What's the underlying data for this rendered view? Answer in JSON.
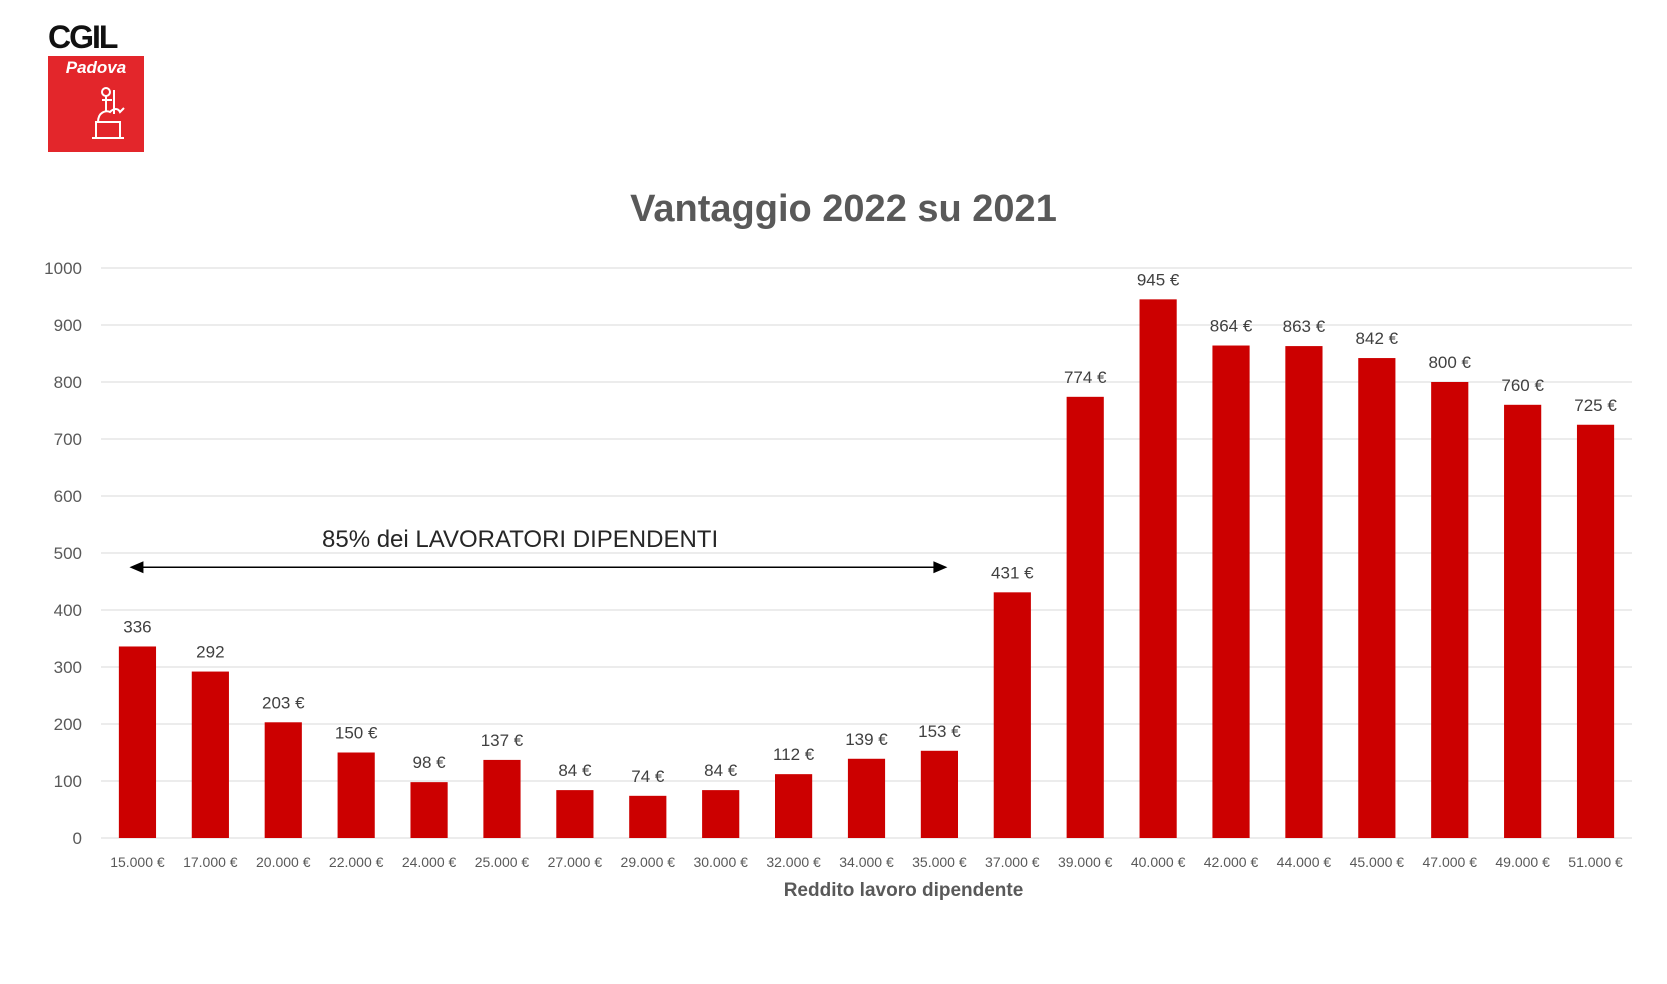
{
  "logo": {
    "org": "CGIL",
    "city": "Padova"
  },
  "annotation": {
    "text": "85% dei LAVORATORI DIPENDENTI"
  },
  "colors": {
    "bar": "#cc0000",
    "grid": "#d9d9d9",
    "axis_text": "#595959",
    "label_text": "#404040"
  },
  "chart_data": {
    "type": "bar",
    "title": "Vantaggio 2022 su 2021",
    "xlabel": "Reddito lavoro dipendente",
    "ylabel": "",
    "ylim": [
      0,
      1000
    ],
    "yticks": [
      0,
      100,
      200,
      300,
      400,
      500,
      600,
      700,
      800,
      900,
      1000
    ],
    "grid": true,
    "categories": [
      "15.000 €",
      "17.000 €",
      "20.000 €",
      "22.000 €",
      "24.000 €",
      "25.000 €",
      "27.000 €",
      "29.000 €",
      "30.000 €",
      "32.000 €",
      "34.000 €",
      "35.000 €",
      "37.000 €",
      "39.000 €",
      "40.000 €",
      "42.000 €",
      "44.000 €",
      "45.000 €",
      "47.000 €",
      "49.000 €",
      "51.000 €"
    ],
    "values": [
      336,
      292,
      203,
      150,
      98,
      137,
      84,
      74,
      84,
      112,
      139,
      153,
      431,
      774,
      945,
      864,
      863,
      842,
      800,
      760,
      725
    ],
    "data_labels": [
      "336",
      "292",
      "203 €",
      "150 €",
      "98 €",
      "137 €",
      "84 €",
      "74 €",
      "84 €",
      "112 €",
      "139 €",
      "153 €",
      "431 €",
      "774 €",
      "945 €",
      "864 €",
      "863 €",
      "842 €",
      "800 €",
      "760 €",
      "725 €"
    ],
    "annotation_range": {
      "from": "15.000 €",
      "to": "35.000 €",
      "y": 475
    }
  }
}
